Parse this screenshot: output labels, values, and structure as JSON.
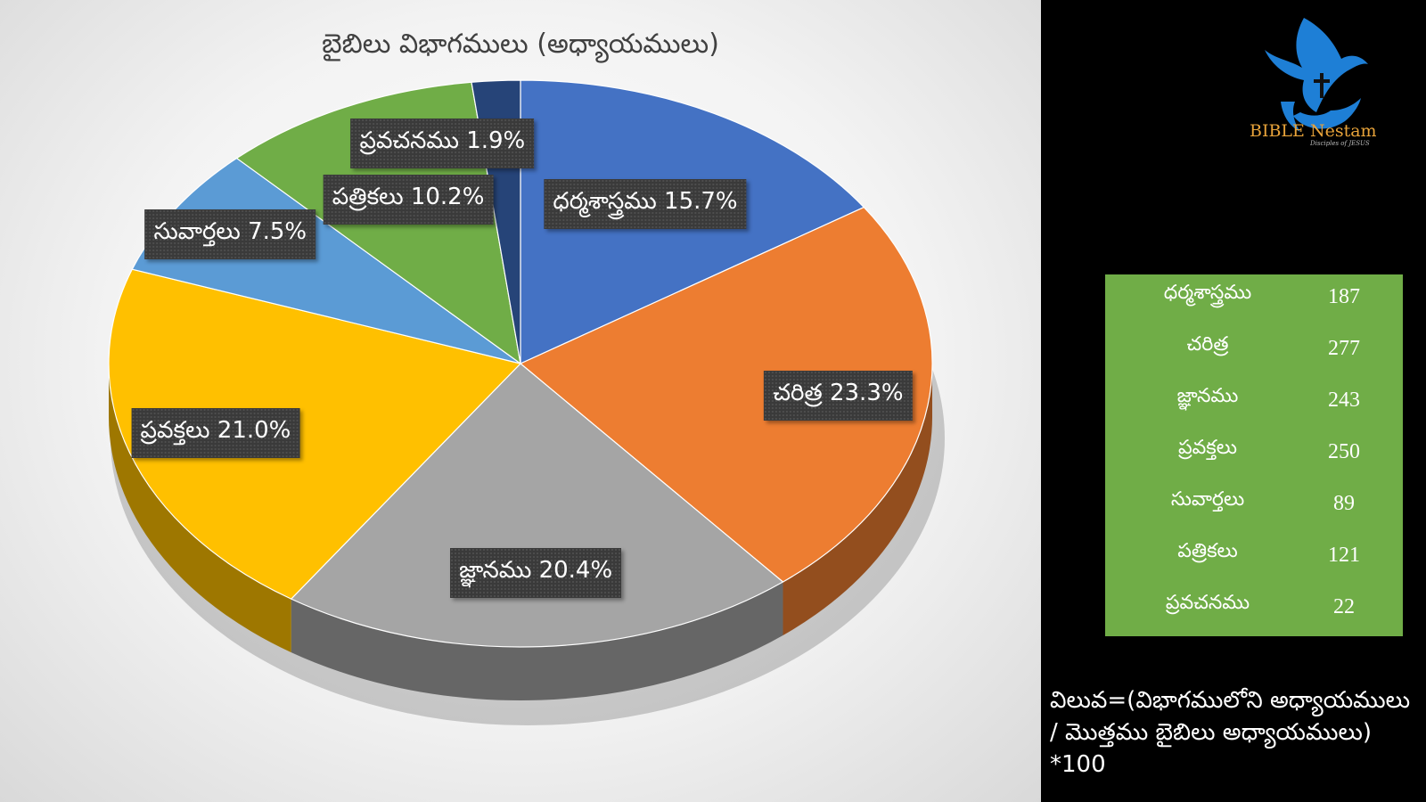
{
  "chart_data": {
    "type": "pie",
    "title": "బైబిలు విభాగములు (అధ్యాయములు)",
    "categories": [
      "ధర్మశాస్త్రము",
      "చరిత్ర",
      "జ్ఞానము",
      "ప్రవక్తలు",
      "సువార్తలు",
      "పత్రికలు",
      "ప్రవచనము"
    ],
    "values": [
      15.7,
      23.3,
      20.4,
      21.0,
      7.5,
      10.2,
      1.9
    ],
    "data_labels": [
      "ధర్మశాస్త్రము 15.7%",
      "చరిత్ర 23.3%",
      "జ్ఞానము 20.4%",
      "ప్రవక్తలు 21.0%",
      "సువార్తలు 7.5%",
      "పత్రికలు 10.2%",
      "ప్రవచనము 1.9%"
    ],
    "colors": [
      "#4472c4",
      "#ed7d31",
      "#a5a5a5",
      "#ffc000",
      "#5b9bd5",
      "#70ad47",
      "#264478"
    ],
    "style": "3d"
  },
  "table": {
    "rows": [
      {
        "name": "ధర్మశాస్త్రము",
        "value": "187"
      },
      {
        "name": "చరిత్ర",
        "value": "277"
      },
      {
        "name": "జ్ఞానము",
        "value": "243"
      },
      {
        "name": "ప్రవక్తలు",
        "value": "250"
      },
      {
        "name": "సువార్తలు",
        "value": "89"
      },
      {
        "name": "పత్రికలు",
        "value": "121"
      },
      {
        "name": "ప్రవచనము",
        "value": "22"
      }
    ],
    "background": "#70ad47"
  },
  "note": {
    "line1": "విలువ=(విభాగములోని అధ్యాయములు",
    "line2": "/ మొత్తము బైబిలు అధ్యాయములు)",
    "line3": "*100"
  },
  "logo": {
    "text": "BIBLE Nestam",
    "subtext": "Disciples of JESUS",
    "icon": "dove-cross-hand-icon",
    "text_color": "#e8a33a",
    "icon_color": "#1e7fd6"
  }
}
